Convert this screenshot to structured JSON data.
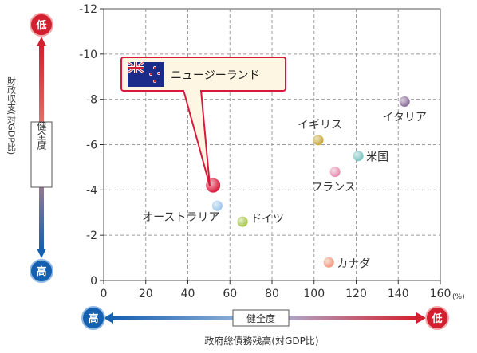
{
  "chart_data": {
    "type": "scatter",
    "x_unit": "(%)",
    "xlim": [
      0,
      160
    ],
    "ylim": [
      0,
      -12
    ],
    "x_ticks": [
      0,
      20,
      40,
      60,
      80,
      100,
      120,
      140,
      160
    ],
    "y_ticks": [
      0,
      -2,
      -4,
      -6,
      -8,
      -10,
      -12
    ],
    "x_tick_labels": [
      "0",
      "20",
      "40",
      "60",
      "80",
      "100",
      "120",
      "140",
      "160"
    ],
    "y_tick_labels": [
      "0",
      "-2",
      "-4",
      "-6",
      "-8",
      "-10",
      "-12"
    ],
    "grid": true,
    "xlabel": "政府総債務残高(対GDP比)",
    "ylabel": "財政収支(対GDP比)",
    "health_label": "健全度",
    "low_label": "低",
    "high_label": "高",
    "points": [
      {
        "name": "ニュージーランド",
        "x": 52,
        "y": -4.2,
        "color": "#d8193b",
        "highlight": true
      },
      {
        "name": "オーストラリア",
        "x": 54,
        "y": -3.3,
        "color": "#9cc7ea"
      },
      {
        "name": "ドイツ",
        "x": 66,
        "y": -2.6,
        "color": "#a7c64a"
      },
      {
        "name": "イギリス",
        "x": 102,
        "y": -6.2,
        "color": "#c9a93a"
      },
      {
        "name": "フランス",
        "x": 110,
        "y": -4.8,
        "color": "#e58fb0"
      },
      {
        "name": "米国",
        "x": 121,
        "y": -5.5,
        "color": "#7cc5c2"
      },
      {
        "name": "イタリア",
        "x": 143,
        "y": -7.9,
        "color": "#8a6c9a"
      },
      {
        "name": "カナダ",
        "x": 107,
        "y": -0.8,
        "color": "#ee9b7f"
      }
    ],
    "colors": {
      "low": "#d32030",
      "high": "#1660b0",
      "callout_border": "#d8193b",
      "callout_fill": "#fdf6e3",
      "grid": "#9b9b9b",
      "axis": "#333333"
    }
  }
}
